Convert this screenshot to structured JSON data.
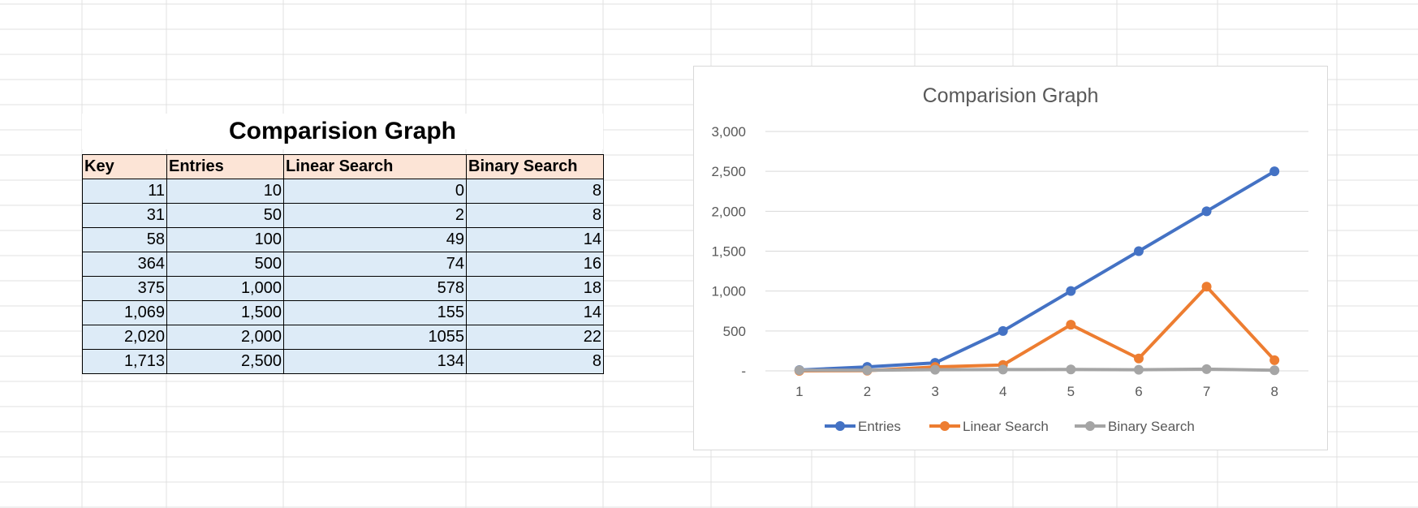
{
  "sheet": {
    "title": "Comparision Graph",
    "headers": [
      "Key",
      "Entries",
      "Linear Search",
      "Binary Search"
    ],
    "rows": [
      [
        "11",
        "10",
        "0",
        "8"
      ],
      [
        "31",
        "50",
        "2",
        "8"
      ],
      [
        "58",
        "100",
        "49",
        "14"
      ],
      [
        "364",
        "500",
        "74",
        "16"
      ],
      [
        "375",
        "1,000",
        "578",
        "18"
      ],
      [
        "1,069",
        "1,500",
        "155",
        "14"
      ],
      [
        "2,020",
        "2,000",
        "1055",
        "22"
      ],
      [
        "1,713",
        "2,500",
        "134",
        "8"
      ]
    ]
  },
  "colors": {
    "header_fill": "#fce4d6",
    "cell_fill": "#ddebf7",
    "gridline": "#e1e1e1",
    "chart_border": "#d9d9d9"
  },
  "chart_data": {
    "type": "line",
    "title": "Comparision Graph",
    "x": [
      1,
      2,
      3,
      4,
      5,
      6,
      7,
      8
    ],
    "ylim": [
      0,
      3000
    ],
    "yticks": [
      0,
      500,
      1000,
      1500,
      2000,
      2500,
      3000
    ],
    "ytick_labels": [
      "-",
      "500",
      "1,000",
      "1,500",
      "2,000",
      "2,500",
      "3,000"
    ],
    "grid": true,
    "legend": "bottom",
    "series": [
      {
        "name": "Entries",
        "color": "#4472c4",
        "values": [
          10,
          50,
          100,
          500,
          1000,
          1500,
          2000,
          2500
        ]
      },
      {
        "name": "Linear Search",
        "color": "#ed7d31",
        "values": [
          0,
          2,
          49,
          74,
          578,
          155,
          1055,
          134
        ]
      },
      {
        "name": "Binary Search",
        "color": "#a5a5a5",
        "values": [
          8,
          8,
          14,
          16,
          18,
          14,
          22,
          8
        ]
      }
    ]
  }
}
